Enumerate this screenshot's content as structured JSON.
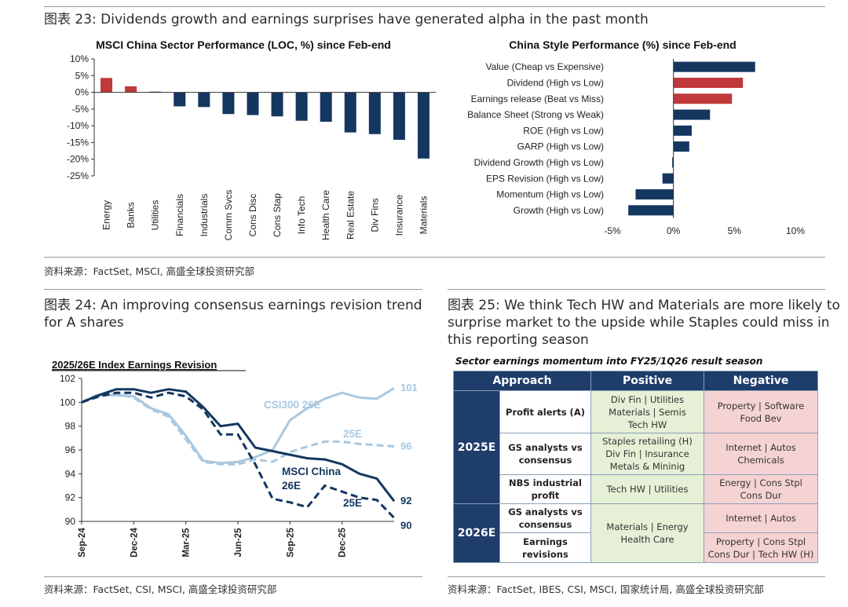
{
  "fig23": {
    "title": "图表 23: Dividends growth and earnings surprises have generated alpha in the past month",
    "source": "资料来源：FactSet, MSCI, 高盛全球投资研究部"
  },
  "fig24": {
    "title_line1": "图表 24: An improving consensus earnings revision trend",
    "title_line2": "for A shares",
    "source": "资料来源：FactSet, CSI, MSCI, 高盛全球投资研究部"
  },
  "fig25": {
    "title_line1": "图表 25: We think Tech HW and Materials are more likely to",
    "title_line2": "surprise market to the upside while Staples could miss in",
    "title_line3": "this reporting season",
    "subtitle": "Sector earnings momentum into FY25/1Q26 result season",
    "source": "资料来源：FactSet, IBES, CSI, MSCI, 国家统计局, 高盛全球投资研究部",
    "headers": [
      "Approach",
      "Positive",
      "Negative"
    ],
    "years": [
      "2025E",
      "2026E"
    ],
    "rows": [
      {
        "approach": "Profit alerts (A)",
        "positive": [
          "Div Fin | Utilities",
          "Materials | Semis",
          "Tech HW"
        ],
        "negative": [
          "Property | Software",
          "Food Bev"
        ]
      },
      {
        "approach": "GS analysts vs consensus",
        "positive": [
          "Staples retailing (H)",
          "Div Fin | Insurance",
          "Metals & Mininig"
        ],
        "negative": [
          "Internet | Autos",
          "Chemicals"
        ]
      },
      {
        "approach": "NBS industrial profit",
        "positive": [
          "Tech HW | Utilities"
        ],
        "negative": [
          "Energy | Cons Stpl",
          "Cons Dur"
        ]
      },
      {
        "approach": "GS analysts vs consensus",
        "positive": [
          "Materials | Energy",
          "Health Care"
        ],
        "negative": [
          "Internet | Autos"
        ]
      },
      {
        "approach": "Earnings revisions",
        "positive": [],
        "negative": [
          "Property | Cons Stpl",
          "Cons Dur | Tech HW (H)"
        ]
      }
    ]
  },
  "chart_data": [
    {
      "type": "bar",
      "title": "MSCI China Sector Performance (LOC, %) since Feb-end",
      "categories": [
        "Energy",
        "Banks",
        "Utilities",
        "Financials",
        "Industrials",
        "Comm Svcs",
        "Cons Disc",
        "Cons Stap",
        "Info Tech",
        "Health Care",
        "Real Estate",
        "Div Fins",
        "Insurance",
        "Materials"
      ],
      "values": [
        4.3,
        1.8,
        0.2,
        -4.2,
        -4.4,
        -6.5,
        -6.8,
        -7.2,
        -8.5,
        -8.8,
        -12.0,
        -12.5,
        -14.2,
        -19.8
      ],
      "highlight": [
        true,
        true,
        false,
        false,
        false,
        false,
        false,
        false,
        false,
        false,
        false,
        false,
        false,
        false
      ],
      "ylim": [
        -25,
        10
      ],
      "yticks": [
        -25,
        -20,
        -15,
        -10,
        -5,
        0,
        5,
        10
      ],
      "ytick_labels": [
        "-25%",
        "-20%",
        "-15%",
        "-10%",
        "-5%",
        "0%",
        "5%",
        "10%"
      ],
      "colors": {
        "highlight": "#c0393b",
        "normal": "#14375f"
      }
    },
    {
      "type": "bar",
      "orientation": "horizontal",
      "title": "China Style Performance (%) since Feb-end",
      "categories": [
        "Value (Cheap vs Expensive)",
        "Dividend (High vs Low)",
        "Earnings release (Beat vs Miss)",
        "Balance Sheet (Strong vs Weak)",
        "ROE (High vs Low)",
        "GARP (High vs Low)",
        "Dividend Growth (High vs Low)",
        "EPS Revision (High vs Low)",
        "Momentum (High vs Low)",
        "Growth (High vs Low)"
      ],
      "values": [
        6.7,
        5.7,
        4.8,
        3.0,
        1.5,
        1.3,
        -0.1,
        -0.9,
        -3.1,
        -3.7
      ],
      "highlight": [
        false,
        true,
        true,
        false,
        false,
        false,
        false,
        false,
        false,
        false
      ],
      "xlim": [
        -5,
        10
      ],
      "xticks": [
        -5,
        0,
        5,
        10
      ],
      "xtick_labels": [
        "-5%",
        "0%",
        "5%",
        "10%"
      ],
      "colors": {
        "highlight": "#c0393b",
        "normal": "#14375f"
      }
    },
    {
      "type": "line",
      "title": "2025/26E Index Earnings Revision",
      "x": [
        "Sep-24",
        "Oct-24",
        "Nov-24",
        "Dec-24",
        "Jan-25",
        "Feb-25",
        "Mar-25",
        "Apr-25",
        "May-25",
        "Jun-25",
        "Jul-25",
        "Aug-25",
        "Sep-25",
        "Oct-25",
        "Nov-25",
        "Dec-25",
        "Jan-26",
        "Feb-26",
        "Mar-26"
      ],
      "xtick_labels": [
        "Sep-24",
        "Dec-24",
        "Mar-25",
        "Jun-25",
        "Sep-25",
        "Dec-25"
      ],
      "xtick_index": [
        0,
        3,
        6,
        9,
        12,
        15
      ],
      "ylim": [
        90,
        102
      ],
      "yticks": [
        90,
        92,
        94,
        96,
        98,
        100,
        102
      ],
      "series": [
        {
          "name": "CSI300 26E",
          "style": "solid",
          "color": "#a9c8e0",
          "end_label": "101",
          "values": [
            100.0,
            100.6,
            100.6,
            100.5,
            99.5,
            99.0,
            97.2,
            95.1,
            94.9,
            95.0,
            95.4,
            96.0,
            98.5,
            99.5,
            100.3,
            100.8,
            100.4,
            100.3,
            101.2
          ]
        },
        {
          "name": "25E",
          "style": "dashed",
          "color": "#a9c8e0",
          "end_label": "96",
          "values": [
            100.0,
            100.7,
            100.7,
            100.4,
            99.4,
            98.8,
            96.9,
            95.0,
            94.8,
            94.8,
            95.2,
            95.0,
            95.8,
            96.3,
            96.7,
            96.7,
            96.5,
            96.4,
            96.3
          ]
        },
        {
          "name": "MSCI China 26E",
          "style": "solid",
          "color": "#14375f",
          "end_label": "92",
          "values": [
            100.0,
            100.6,
            101.1,
            101.1,
            100.8,
            101.1,
            100.9,
            99.6,
            98.0,
            98.2,
            96.2,
            95.9,
            95.6,
            95.3,
            95.2,
            94.8,
            94.0,
            93.6,
            91.7
          ]
        },
        {
          "name": "25E",
          "style": "dashed",
          "color": "#14375f",
          "end_label": "90",
          "values": [
            100.0,
            100.5,
            100.8,
            100.8,
            100.4,
            100.8,
            100.5,
            99.4,
            97.3,
            97.3,
            94.8,
            91.9,
            91.6,
            91.2,
            93.0,
            92.5,
            92.0,
            91.8,
            90.3
          ]
        }
      ],
      "annotations": [
        "CSI300 26E",
        "25E",
        "MSCI China",
        "26E",
        "25E"
      ]
    }
  ]
}
